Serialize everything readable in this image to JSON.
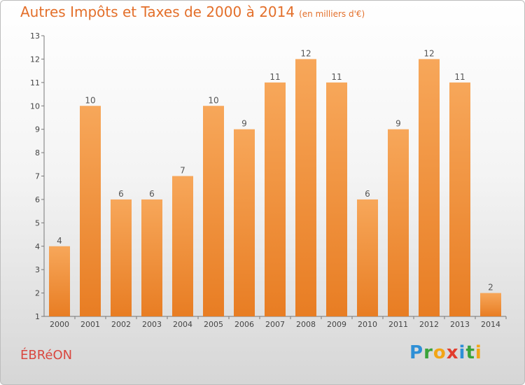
{
  "header": {
    "title": "Autres Impôts et Taxes de 2000 à 2014",
    "unit": "(en milliers d'€)"
  },
  "footer": {
    "place": "ÉBRéON",
    "logo": [
      {
        "ch": "P",
        "color": "#2e8fd6"
      },
      {
        "ch": "r",
        "color": "#3aa33a"
      },
      {
        "ch": "o",
        "color": "#f2a516"
      },
      {
        "ch": "x",
        "color": "#e23d2e"
      },
      {
        "ch": "i",
        "color": "#2e8fd6"
      },
      {
        "ch": "t",
        "color": "#3aa33a"
      },
      {
        "ch": "i",
        "color": "#f2a516"
      }
    ]
  },
  "colors": {
    "bar_top": "#f7a75a",
    "bar_bottom": "#e87d23",
    "title": "#e36f2a"
  },
  "chart_data": {
    "type": "bar",
    "title": "Autres Impôts et Taxes de 2000 à 2014",
    "subtitle": "(en milliers d'€)",
    "categories": [
      "2000",
      "2001",
      "2002",
      "2003",
      "2004",
      "2005",
      "2006",
      "2007",
      "2008",
      "2009",
      "2010",
      "2011",
      "2012",
      "2013",
      "2014"
    ],
    "values": [
      4,
      10,
      6,
      6,
      7,
      10,
      9,
      11,
      12,
      11,
      6,
      9,
      12,
      11,
      2
    ],
    "yticks": [
      1,
      2,
      3,
      4,
      5,
      6,
      7,
      8,
      9,
      10,
      11,
      12,
      13
    ],
    "ylim": [
      1,
      13
    ],
    "grid": false,
    "legend": "none"
  }
}
